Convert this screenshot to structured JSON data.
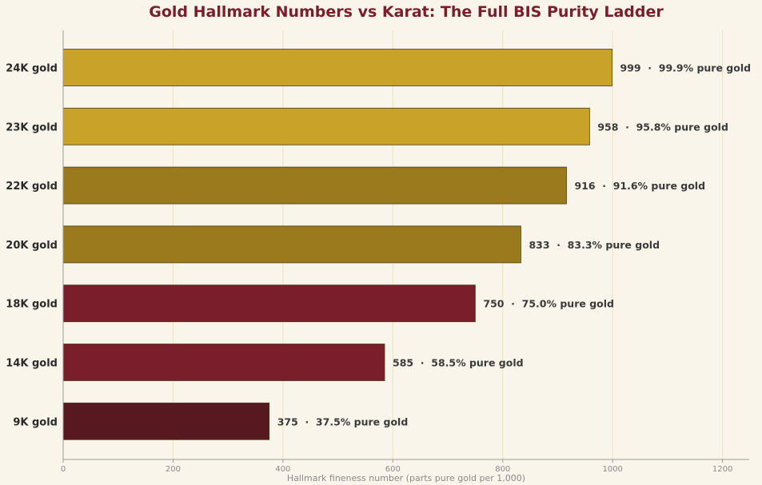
{
  "colors": {
    "background": "#faf5ea",
    "title": "#7a1e2b",
    "grid": "#eee2b8",
    "tick_label": "#8a8a8a",
    "category_label": "#2a2a2a",
    "value_label": "#3a3a3a"
  },
  "chart_data": {
    "type": "bar",
    "orientation": "horizontal",
    "title": "Gold Hallmark Numbers vs Karat: The Full BIS Purity Ladder",
    "xlabel": "Hallmark fineness number (parts pure gold per 1,000)",
    "ylabel": "",
    "xlim": [
      0,
      1250
    ],
    "xticks": [
      0,
      200,
      400,
      600,
      800,
      1000,
      1200
    ],
    "grid": "vertical",
    "categories": [
      "24K gold",
      "23K gold",
      "22K gold",
      "20K gold",
      "18K gold",
      "14K gold",
      "9K gold"
    ],
    "values": [
      999,
      958,
      916,
      833,
      750,
      585,
      375
    ],
    "value_labels": [
      "999  ·  99.9% pure gold",
      "958  ·  95.8% pure gold",
      "916  ·  91.6% pure gold",
      "833  ·  83.3% pure gold",
      "750  ·  75.0% pure gold",
      "585  ·  58.5% pure gold",
      "375  ·  37.5% pure gold"
    ],
    "bar_colors": [
      "#c9a22a",
      "#c9a22a",
      "#9a7a1c",
      "#9a7a1c",
      "#7a1e2b",
      "#7a1e2b",
      "#581820"
    ]
  }
}
